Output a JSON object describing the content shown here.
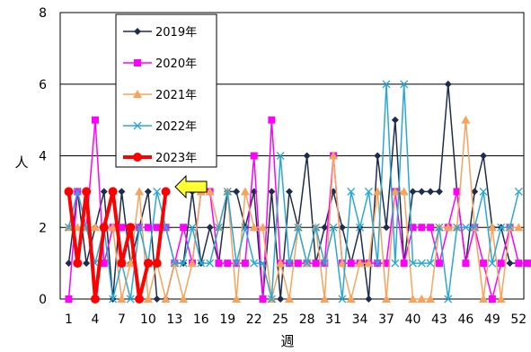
{
  "chart_data": {
    "type": "line",
    "xlabel": "週",
    "ylabel": "人",
    "ylim": [
      0,
      8
    ],
    "yticks": [
      0,
      2,
      4,
      6,
      8
    ],
    "xlim": [
      1,
      53
    ],
    "xticks": [
      1,
      4,
      7,
      10,
      13,
      16,
      19,
      22,
      25,
      28,
      31,
      34,
      37,
      40,
      43,
      46,
      49,
      52
    ],
    "grid": "horizontal",
    "legend": "top-left",
    "series": [
      {
        "name": "2019年",
        "color": "#1f2d4d",
        "marker": "diamond",
        "width": 1.5,
        "values": [
          1,
          3,
          1,
          2,
          3,
          0,
          3,
          1,
          2,
          3,
          0,
          0,
          1,
          1,
          3,
          1,
          2,
          1,
          3,
          3,
          2,
          3,
          0,
          3,
          0,
          3,
          2,
          4,
          1,
          2,
          3,
          2,
          1,
          2,
          0,
          4,
          2,
          5,
          1,
          3,
          3,
          3,
          3,
          6,
          3,
          1,
          3,
          4,
          2,
          2,
          1,
          1
        ]
      },
      {
        "name": "2020年",
        "color": "#ff00ff",
        "marker": "square",
        "width": 1.5,
        "values": [
          0,
          3,
          2,
          5,
          1,
          2,
          2,
          2,
          2,
          2,
          2,
          2,
          1,
          2,
          1,
          3,
          3,
          1,
          1,
          1,
          1,
          4,
          0,
          5,
          1,
          1,
          1,
          1,
          1,
          1,
          4,
          1,
          1,
          1,
          1,
          1,
          1,
          3,
          1,
          2,
          2,
          2,
          1,
          2,
          3,
          1,
          2,
          1,
          0,
          1,
          2,
          1,
          1
        ]
      },
      {
        "name": "2021年",
        "color": "#f7a35c",
        "marker": "triangle",
        "width": 1.5,
        "values": [
          2,
          2,
          2,
          2,
          2,
          2,
          0,
          1,
          3,
          0,
          1,
          0,
          1,
          0,
          1,
          3,
          3,
          2,
          3,
          0,
          3,
          2,
          2,
          0,
          1,
          0,
          2,
          1,
          2,
          0,
          4,
          1,
          0,
          1,
          1,
          3,
          0,
          3,
          3,
          0,
          0,
          0,
          2,
          2,
          2,
          5,
          2,
          0,
          2,
          0,
          2,
          2
        ]
      },
      {
        "name": "2022年",
        "color": "#2ba7d4",
        "marker": "x",
        "width": 1.5,
        "values": [
          2,
          3,
          2,
          1,
          2,
          0,
          1,
          0,
          2,
          1,
          3,
          2,
          1,
          1,
          2,
          1,
          1,
          2,
          3,
          1,
          2,
          1,
          1,
          0,
          4,
          1,
          2,
          1,
          2,
          1,
          2,
          0,
          3,
          2,
          3,
          1,
          6,
          1,
          6,
          1,
          1,
          1,
          2,
          0,
          2,
          2,
          2,
          3,
          1,
          2,
          2,
          3
        ]
      },
      {
        "name": "2023年",
        "color": "#ff0000",
        "marker": "circle",
        "width": 4,
        "values": [
          3,
          1,
          3,
          0,
          2,
          3,
          1,
          2,
          0,
          1,
          1,
          3
        ]
      }
    ]
  }
}
